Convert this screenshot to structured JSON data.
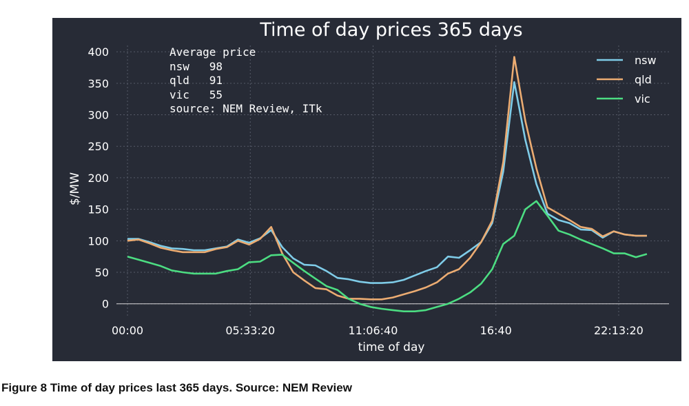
{
  "caption": "Figure 8 Time of day prices last 365 days. Source: NEM Review",
  "chart_data": {
    "type": "line",
    "title": "Time of day prices 365 days",
    "xlabel": "time of day",
    "ylabel": "$/MW",
    "ylim": [
      -20,
      410
    ],
    "yticks": [
      0,
      50,
      100,
      150,
      200,
      250,
      300,
      350,
      400
    ],
    "xtick_labels": [
      "00:00",
      "05:33:20",
      "11:06:40",
      "16:40",
      "22:13:20"
    ],
    "xtick_seconds": [
      0,
      20000,
      40000,
      60000,
      80000
    ],
    "xlim": [
      -1800,
      88200
    ],
    "grid": true,
    "legend_position": "top-right",
    "annotation_lines": [
      "Average price",
      "nsw   98",
      "qld   91",
      "vic   55",
      "source: NEM Review, ITk"
    ],
    "x_seconds": [
      0,
      1800,
      3600,
      5400,
      7200,
      9000,
      10800,
      12600,
      14400,
      16200,
      18000,
      19800,
      21600,
      23400,
      25200,
      27000,
      28800,
      30600,
      32400,
      34200,
      36000,
      37800,
      39600,
      41400,
      43200,
      45000,
      46800,
      48600,
      50400,
      52200,
      54000,
      55800,
      57600,
      59400,
      61200,
      63000,
      64800,
      66600,
      68400,
      70200,
      72000,
      73800,
      75600,
      77400,
      79200,
      81000,
      82800,
      84600
    ],
    "series": [
      {
        "name": "nsw",
        "color": "#7fcce8",
        "values": [
          103,
          103,
          98,
          92,
          88,
          87,
          85,
          85,
          88,
          91,
          102,
          97,
          104,
          117,
          90,
          72,
          62,
          61,
          52,
          41,
          39,
          35,
          33,
          33,
          34,
          38,
          45,
          52,
          58,
          75,
          73,
          85,
          98,
          128,
          210,
          352,
          260,
          190,
          143,
          133,
          128,
          118,
          117,
          105,
          115,
          110,
          108,
          108
        ]
      },
      {
        "name": "qld",
        "color": "#ecac72",
        "values": [
          100,
          102,
          96,
          89,
          85,
          82,
          82,
          82,
          87,
          90,
          100,
          94,
          103,
          122,
          80,
          50,
          37,
          25,
          23,
          13,
          8,
          8,
          7,
          7,
          10,
          15,
          20,
          26,
          34,
          48,
          55,
          73,
          98,
          132,
          225,
          392,
          290,
          215,
          153,
          143,
          133,
          122,
          119,
          107,
          115,
          110,
          108,
          108
        ]
      },
      {
        "name": "vic",
        "color": "#4cdd82",
        "values": [
          75,
          70,
          65,
          60,
          53,
          50,
          48,
          48,
          48,
          52,
          55,
          66,
          67,
          77,
          78,
          65,
          52,
          40,
          28,
          22,
          8,
          0,
          -5,
          -8,
          -10,
          -12,
          -12,
          -10,
          -5,
          0,
          8,
          18,
          32,
          55,
          95,
          108,
          150,
          163,
          140,
          116,
          110,
          102,
          95,
          88,
          80,
          80,
          74,
          79
        ]
      }
    ]
  }
}
